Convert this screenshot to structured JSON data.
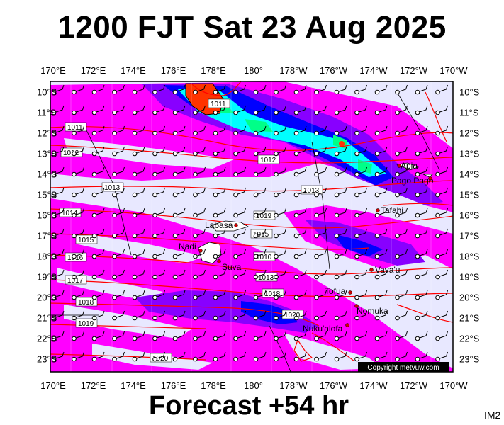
{
  "title": "1200 FJT Sat 23 Aug 2025",
  "footer": "Forecast +54 hr",
  "image_tag": "IM2",
  "copyright": "Copyright metvuw.com",
  "longitudes": [
    "170°E",
    "172°E",
    "174°E",
    "176°E",
    "178°E",
    "180°",
    "178°W",
    "176°W",
    "174°W",
    "172°W",
    "170°W"
  ],
  "latitudes": [
    "10°S",
    "11°S",
    "12°S",
    "13°S",
    "14°S",
    "15°S",
    "16°S",
    "17°S",
    "18°S",
    "19°S",
    "20°S",
    "21°S",
    "22°S",
    "23°S"
  ],
  "places": [
    {
      "name": "Apia"
    },
    {
      "name": "Pago Pago"
    },
    {
      "name": "Tafahi"
    },
    {
      "name": "Labasa"
    },
    {
      "name": "Nadi"
    },
    {
      "name": "Suva"
    },
    {
      "name": "Vava'u"
    },
    {
      "name": "Tofua"
    },
    {
      "name": "Nomuka"
    },
    {
      "name": "Nuku'alofa"
    }
  ],
  "isobars": [
    "1011",
    "1011",
    "1012",
    "1013",
    "1014",
    "1015",
    "1016",
    "1017",
    "1018",
    "1019",
    "1010",
    "1012",
    "1013",
    "1019",
    "1018",
    "1015",
    "1013",
    "1020",
    "1020"
  ],
  "colors": {
    "background": "#e8e8ff",
    "rain_light": "#ff00ff",
    "rain_medium": "#8800ff",
    "rain_heavy": "#0000ff",
    "rain_very_heavy": "#00ffff",
    "rain_extreme": "#ff3300",
    "isobar": "#ff0000"
  }
}
